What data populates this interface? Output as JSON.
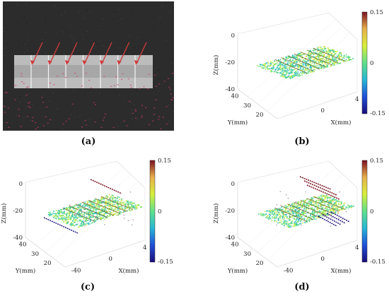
{
  "captions": {
    "a": "(a)",
    "b": "(b)",
    "c": "(c)",
    "d": "(d)"
  },
  "chart_data": [
    {
      "panel": "b",
      "type": "scatter",
      "projection": "3d",
      "xlabel": "X(mm)",
      "ylabel": "Y(mm)",
      "zlabel": "Z(mm)",
      "x_ticks": [
        0,
        4
      ],
      "y_ticks": [
        20,
        30,
        40
      ],
      "z_ticks": [
        0,
        -20,
        -40
      ],
      "zlim": [
        -40,
        0
      ],
      "colorbar": {
        "ticks": [
          0.15,
          0,
          -0.15
        ],
        "range": [
          -0.15,
          0.15
        ]
      },
      "surface_z": -20,
      "crack_count": 7,
      "outliers": false
    },
    {
      "panel": "c",
      "type": "scatter",
      "projection": "3d",
      "xlabel": "X(mm)",
      "ylabel": "Y(mm)",
      "zlabel": "Z(mm)",
      "x_ticks": [
        -40,
        0,
        4
      ],
      "y_ticks": [
        20,
        30,
        40
      ],
      "z_ticks": [
        0,
        -20,
        -40
      ],
      "zlim": [
        -40,
        0
      ],
      "colorbar": {
        "ticks": [
          0.15,
          0,
          -0.15
        ],
        "range": [
          -0.15,
          0.15
        ]
      },
      "surface_z": -20,
      "crack_count": 7,
      "outliers": true
    },
    {
      "panel": "d",
      "type": "scatter",
      "projection": "3d",
      "xlabel": "X(mm)",
      "ylabel": "Y(mm)",
      "zlabel": "Z(mm)",
      "x_ticks": [
        -40,
        0,
        4
      ],
      "y_ticks": [
        20,
        30,
        40
      ],
      "z_ticks": [
        0,
        -20,
        -40
      ],
      "zlim": [
        -40,
        0
      ],
      "colorbar": {
        "ticks": [
          0.15,
          0,
          -0.15
        ],
        "range": [
          -0.15,
          0.15
        ]
      },
      "surface_z": -20,
      "crack_count": 7,
      "outliers": true
    }
  ],
  "colors": {
    "colormap": [
      "#1a0d7a",
      "#1f4fd8",
      "#26b6d6",
      "#5fe08a",
      "#d7ef3a",
      "#e8b04a",
      "#7a1020"
    ],
    "photo_bg": "#2c2c2c",
    "arrow": "#cc3a3a"
  }
}
